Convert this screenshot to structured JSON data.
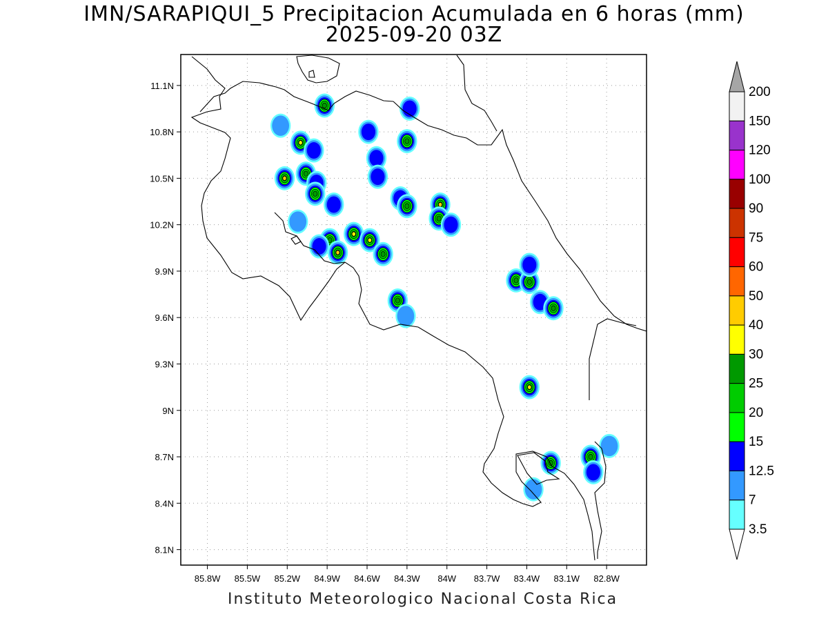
{
  "title": "IMN/SARAPIQUI_5 Precipitacion Acumulada en 6 horas (mm)",
  "subtitle": "2025-09-20 03Z",
  "footer": "Instituto Meteorologico Nacional Costa Rica",
  "map": {
    "lon_range": [
      -86.0,
      -82.5
    ],
    "lat_range": [
      8.0,
      11.3
    ],
    "lon_ticks": [
      "85.8W",
      "85.5W",
      "85.2W",
      "84.9W",
      "84.6W",
      "84.3W",
      "84W",
      "83.7W",
      "83.4W",
      "83.1W",
      "82.8W"
    ],
    "lat_ticks": [
      "11.1N",
      "10.8N",
      "10.5N",
      "10.2N",
      "9.9N",
      "9.6N",
      "9.3N",
      "9N",
      "8.7N",
      "8.4N",
      "8.1N"
    ],
    "grid": "dotted"
  },
  "colorbar": {
    "levels": [
      "200",
      "150",
      "120",
      "100",
      "90",
      "75",
      "60",
      "50",
      "40",
      "30",
      "25",
      "20",
      "15",
      "12.5",
      "7",
      "3.5"
    ],
    "colors": [
      "#f2f2f2",
      "#9933cc",
      "#ff00ff",
      "#990000",
      "#cc3300",
      "#ff0000",
      "#ff6600",
      "#ffcc00",
      "#ffff00",
      "#009900",
      "#00cc00",
      "#00ff00",
      "#0000ff",
      "#3399ff",
      "#66ffff"
    ],
    "over_color": "#a6a6a6",
    "under_color": "#ffffff"
  },
  "precip_cells": [
    {
      "lon": -84.92,
      "lat": 10.97,
      "peak": 25
    },
    {
      "lon": -85.25,
      "lat": 10.84,
      "peak": 7
    },
    {
      "lon": -85.1,
      "lat": 10.73,
      "peak": 30
    },
    {
      "lon": -85.0,
      "lat": 10.68,
      "peak": 12.5
    },
    {
      "lon": -85.22,
      "lat": 10.5,
      "peak": 40
    },
    {
      "lon": -85.06,
      "lat": 10.53,
      "peak": 25
    },
    {
      "lon": -84.98,
      "lat": 10.47,
      "peak": 12.5
    },
    {
      "lon": -84.99,
      "lat": 10.4,
      "peak": 25
    },
    {
      "lon": -84.85,
      "lat": 10.33,
      "peak": 12.5
    },
    {
      "lon": -85.12,
      "lat": 10.22,
      "peak": 7
    },
    {
      "lon": -84.88,
      "lat": 10.1,
      "peak": 25
    },
    {
      "lon": -84.82,
      "lat": 10.02,
      "peak": 40
    },
    {
      "lon": -84.96,
      "lat": 10.06,
      "peak": 12.5
    },
    {
      "lon": -84.7,
      "lat": 10.14,
      "peak": 30
    },
    {
      "lon": -84.58,
      "lat": 10.1,
      "peak": 30
    },
    {
      "lon": -84.48,
      "lat": 10.01,
      "peak": 25
    },
    {
      "lon": -84.59,
      "lat": 10.8,
      "peak": 12.5
    },
    {
      "lon": -84.53,
      "lat": 10.63,
      "peak": 12.5
    },
    {
      "lon": -84.52,
      "lat": 10.51,
      "peak": 12.5
    },
    {
      "lon": -84.35,
      "lat": 10.37,
      "peak": 12.5
    },
    {
      "lon": -84.3,
      "lat": 10.32,
      "peak": 25
    },
    {
      "lon": -84.3,
      "lat": 10.74,
      "peak": 25
    },
    {
      "lon": -84.28,
      "lat": 10.95,
      "peak": 12.5
    },
    {
      "lon": -84.05,
      "lat": 10.33,
      "peak": 40
    },
    {
      "lon": -84.06,
      "lat": 10.24,
      "peak": 25
    },
    {
      "lon": -83.97,
      "lat": 10.2,
      "peak": 12.5
    },
    {
      "lon": -84.37,
      "lat": 9.71,
      "peak": 25
    },
    {
      "lon": -84.31,
      "lat": 9.61,
      "peak": 7
    },
    {
      "lon": -83.48,
      "lat": 9.84,
      "peak": 25
    },
    {
      "lon": -83.38,
      "lat": 9.83,
      "peak": 25
    },
    {
      "lon": -83.38,
      "lat": 9.94,
      "peak": 12.5
    },
    {
      "lon": -83.3,
      "lat": 9.7,
      "peak": 12.5
    },
    {
      "lon": -83.2,
      "lat": 9.66,
      "peak": 25
    },
    {
      "lon": -83.38,
      "lat": 9.15,
      "peak": 30
    },
    {
      "lon": -83.22,
      "lat": 8.66,
      "peak": 25
    },
    {
      "lon": -82.92,
      "lat": 8.7,
      "peak": 25
    },
    {
      "lon": -82.9,
      "lat": 8.6,
      "peak": 12.5
    },
    {
      "lon": -82.78,
      "lat": 8.77,
      "peak": 7
    },
    {
      "lon": -83.35,
      "lat": 8.49,
      "peak": 7
    }
  ]
}
